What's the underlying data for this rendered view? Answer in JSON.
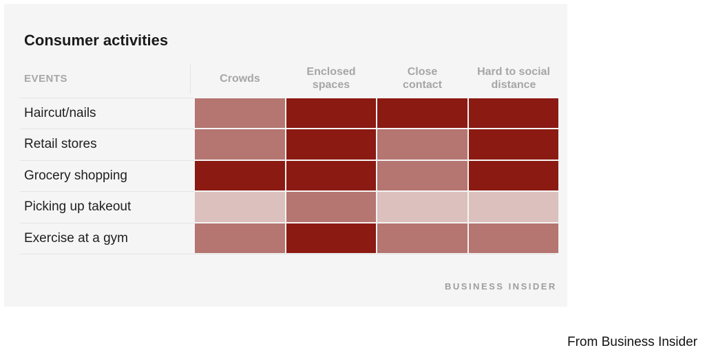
{
  "chart_data": {
    "type": "heatmap",
    "title": "Consumer activities",
    "row_header": "EVENTS",
    "columns": [
      "Crowds",
      "Enclosed\nspaces",
      "Close\ncontact",
      "Hard to social\ndistance"
    ],
    "rows": [
      "Haircut/nails",
      "Retail stores",
      "Grocery shopping",
      "Picking up takeout",
      "Exercise at a gym"
    ],
    "levels": {
      "high": "#8b1a12",
      "medium": "#b57570",
      "low": "#dcc0bd"
    },
    "values": [
      [
        "medium",
        "high",
        "high",
        "high"
      ],
      [
        "medium",
        "high",
        "medium",
        "high"
      ],
      [
        "high",
        "high",
        "medium",
        "high"
      ],
      [
        "low",
        "medium",
        "low",
        "low"
      ],
      [
        "medium",
        "high",
        "medium",
        "medium"
      ]
    ]
  },
  "brand": "BUSINESS INSIDER",
  "caption": "From Business Insider"
}
